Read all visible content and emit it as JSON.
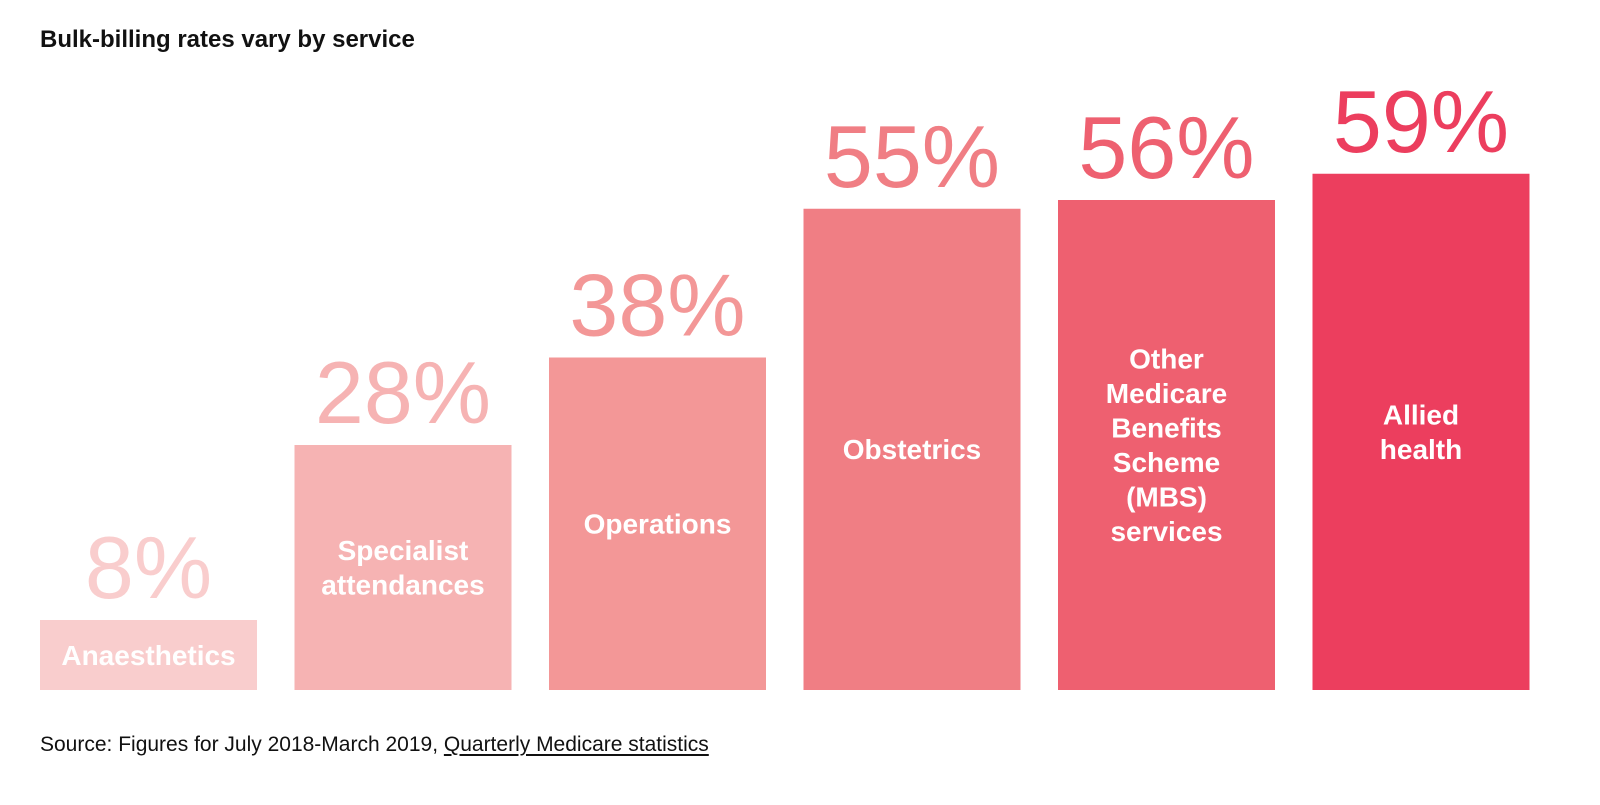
{
  "header": {
    "title": "Bulk-billing rates vary by service"
  },
  "footer": {
    "source_prefix": "Source: Figures for July 2018-March 2019, ",
    "source_link": "Quarterly Medicare statistics"
  },
  "chart_data": {
    "type": "bar",
    "title": "Bulk-billing rates vary by service",
    "xlabel": "",
    "ylabel": "",
    "ylim": [
      0,
      100
    ],
    "grid": false,
    "legend": "none",
    "categories": [
      "Anaesthetics",
      "Specialist attendances",
      "Operations",
      "Obstetrics",
      "Other Medicare Benefits Scheme (MBS) services",
      "Allied health"
    ],
    "category_label_lines": [
      [
        "Anaesthetics"
      ],
      [
        "Specialist",
        "attendances"
      ],
      [
        "Operations"
      ],
      [
        "Obstetrics"
      ],
      [
        "Other",
        "Medicare",
        "Benefits",
        "Scheme",
        "(MBS)",
        "services"
      ],
      [
        "Allied",
        "health"
      ]
    ],
    "values": [
      8,
      28,
      38,
      55,
      56,
      59
    ],
    "value_labels": [
      "8%",
      "28%",
      "38%",
      "55%",
      "56%",
      "59%"
    ],
    "colors": [
      "#f9cdcd",
      "#f6b3b3",
      "#f39797",
      "#f07e84",
      "#ee6070",
      "#ec3e5e"
    ]
  }
}
